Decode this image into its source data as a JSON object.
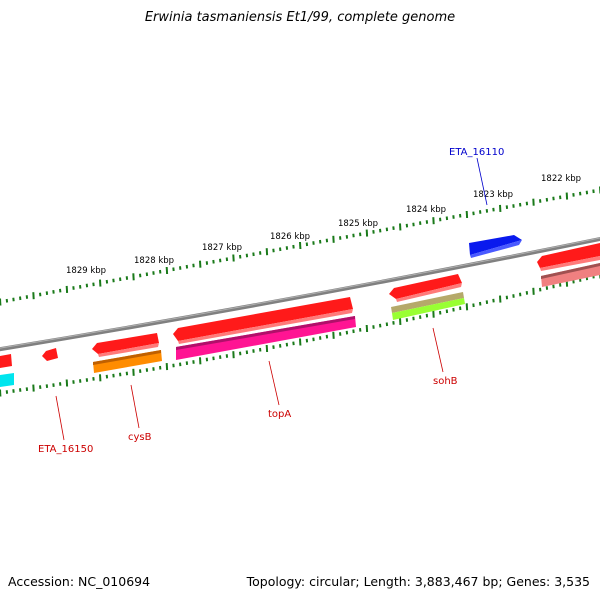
{
  "title": "Erwinia tasmaniensis Et1/99, complete genome",
  "accession_text": "Accession: NC_010694",
  "summary_text": "Topology: circular; Length: 3,883,467 bp; Genes: 3,535",
  "colors": {
    "backbone": "#808080",
    "tick": "#1a7a1a",
    "label_red": "#cc0000",
    "label_blue": "#0000cc"
  },
  "scale": {
    "labels": [
      "1822 kbp",
      "1823 kbp",
      "1824 kbp",
      "1825 kbp",
      "1826 kbp",
      "1827 kbp",
      "1828 kbp",
      "1829 kbp"
    ]
  },
  "gene_labels": {
    "eta16110": "ETA_16110",
    "sohB": "sohB",
    "topA": "topA",
    "cysB": "cysB",
    "eta16150": "ETA_16150"
  },
  "features": [
    {
      "name": "feature-red-outer-1",
      "color": "#ff1a1a"
    },
    {
      "name": "feature-red-outer-2",
      "color": "#ff1a1a"
    },
    {
      "name": "feature-red-outer-3",
      "color": "#ff1a1a"
    },
    {
      "name": "feature-red-outer-4",
      "color": "#ff1a1a"
    },
    {
      "name": "feature-red-outer-5",
      "color": "#ff1a1a"
    },
    {
      "name": "feature-red-outer-6",
      "color": "#ff1a1a"
    },
    {
      "name": "feature-blue-eta16110",
      "color": "#0a1aee"
    },
    {
      "name": "feature-orange-cysB",
      "color": "#ff8c00"
    },
    {
      "name": "feature-magenta-topA",
      "color": "#ff1493"
    },
    {
      "name": "feature-tan-sohB",
      "color": "#b5a96a"
    },
    {
      "name": "feature-green-sohB",
      "color": "#99ff33"
    },
    {
      "name": "feature-salmon",
      "color": "#f08080"
    },
    {
      "name": "feature-cyan",
      "color": "#00e5ee"
    }
  ]
}
